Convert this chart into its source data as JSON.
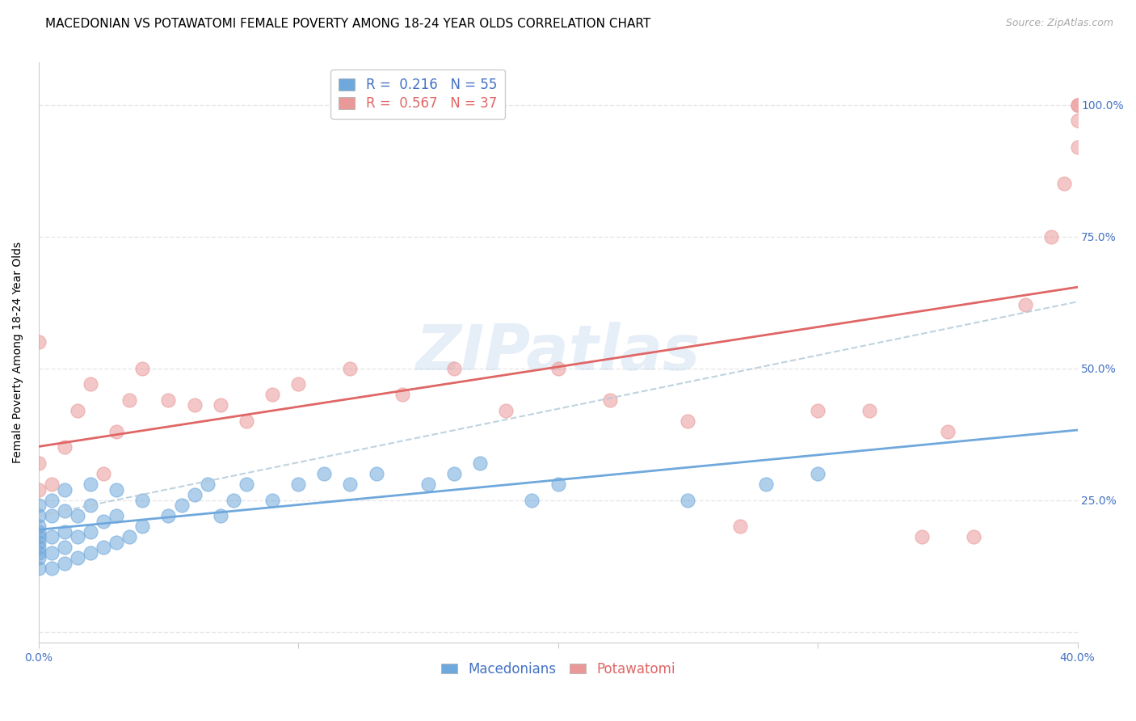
{
  "title": "MACEDONIAN VS POTAWATOMI FEMALE POVERTY AMONG 18-24 YEAR OLDS CORRELATION CHART",
  "source": "Source: ZipAtlas.com",
  "ylabel": "Female Poverty Among 18-24 Year Olds",
  "xlim": [
    0.0,
    0.4
  ],
  "ylim": [
    -0.02,
    1.08
  ],
  "yticks": [
    0.0,
    0.25,
    0.5,
    0.75,
    1.0
  ],
  "ytick_labels": [
    "",
    "25.0%",
    "50.0%",
    "75.0%",
    "100.0%"
  ],
  "xticks": [
    0.0,
    0.1,
    0.2,
    0.3,
    0.4
  ],
  "xtick_labels": [
    "0.0%",
    "",
    "",
    "",
    "40.0%"
  ],
  "mac_R": 0.216,
  "mac_N": 55,
  "pot_R": 0.567,
  "pot_N": 37,
  "mac_color": "#6fa8dc",
  "pot_color": "#ea9999",
  "trend_color_mac": "#6fa8dc",
  "trend_color_pot": "#e06666",
  "trend_color_overall": "#b0c8d8",
  "watermark": "ZIPatlas",
  "mac_x": [
    0.0,
    0.0,
    0.0,
    0.0,
    0.0,
    0.0,
    0.0,
    0.0,
    0.0,
    0.0,
    0.005,
    0.005,
    0.005,
    0.005,
    0.005,
    0.01,
    0.01,
    0.01,
    0.01,
    0.01,
    0.015,
    0.015,
    0.015,
    0.02,
    0.02,
    0.02,
    0.02,
    0.025,
    0.025,
    0.03,
    0.03,
    0.03,
    0.035,
    0.04,
    0.04,
    0.05,
    0.055,
    0.06,
    0.065,
    0.07,
    0.075,
    0.08,
    0.09,
    0.1,
    0.11,
    0.12,
    0.13,
    0.15,
    0.16,
    0.17,
    0.19,
    0.2,
    0.25,
    0.28,
    0.3
  ],
  "mac_y": [
    0.12,
    0.14,
    0.15,
    0.16,
    0.17,
    0.18,
    0.19,
    0.2,
    0.22,
    0.24,
    0.12,
    0.15,
    0.18,
    0.22,
    0.25,
    0.13,
    0.16,
    0.19,
    0.23,
    0.27,
    0.14,
    0.18,
    0.22,
    0.15,
    0.19,
    0.24,
    0.28,
    0.16,
    0.21,
    0.17,
    0.22,
    0.27,
    0.18,
    0.2,
    0.25,
    0.22,
    0.24,
    0.26,
    0.28,
    0.22,
    0.25,
    0.28,
    0.25,
    0.28,
    0.3,
    0.28,
    0.3,
    0.28,
    0.3,
    0.32,
    0.25,
    0.28,
    0.25,
    0.28,
    0.3
  ],
  "pot_x": [
    0.0,
    0.0,
    0.0,
    0.005,
    0.01,
    0.015,
    0.02,
    0.025,
    0.03,
    0.035,
    0.04,
    0.05,
    0.06,
    0.07,
    0.08,
    0.09,
    0.1,
    0.12,
    0.14,
    0.16,
    0.18,
    0.2,
    0.22,
    0.25,
    0.27,
    0.3,
    0.32,
    0.34,
    0.35,
    0.36,
    0.38,
    0.39,
    0.395,
    0.4,
    0.4,
    0.4,
    0.4
  ],
  "pot_y": [
    0.27,
    0.32,
    0.55,
    0.28,
    0.35,
    0.42,
    0.47,
    0.3,
    0.38,
    0.44,
    0.5,
    0.44,
    0.43,
    0.43,
    0.4,
    0.45,
    0.47,
    0.5,
    0.45,
    0.5,
    0.42,
    0.5,
    0.44,
    0.4,
    0.2,
    0.42,
    0.42,
    0.18,
    0.38,
    0.18,
    0.62,
    0.75,
    0.85,
    0.92,
    0.97,
    1.0,
    1.0
  ],
  "background_color": "#ffffff",
  "grid_color": "#e8e8e8",
  "title_fontsize": 11,
  "axis_label_fontsize": 10,
  "tick_fontsize": 10,
  "legend_fontsize": 12
}
